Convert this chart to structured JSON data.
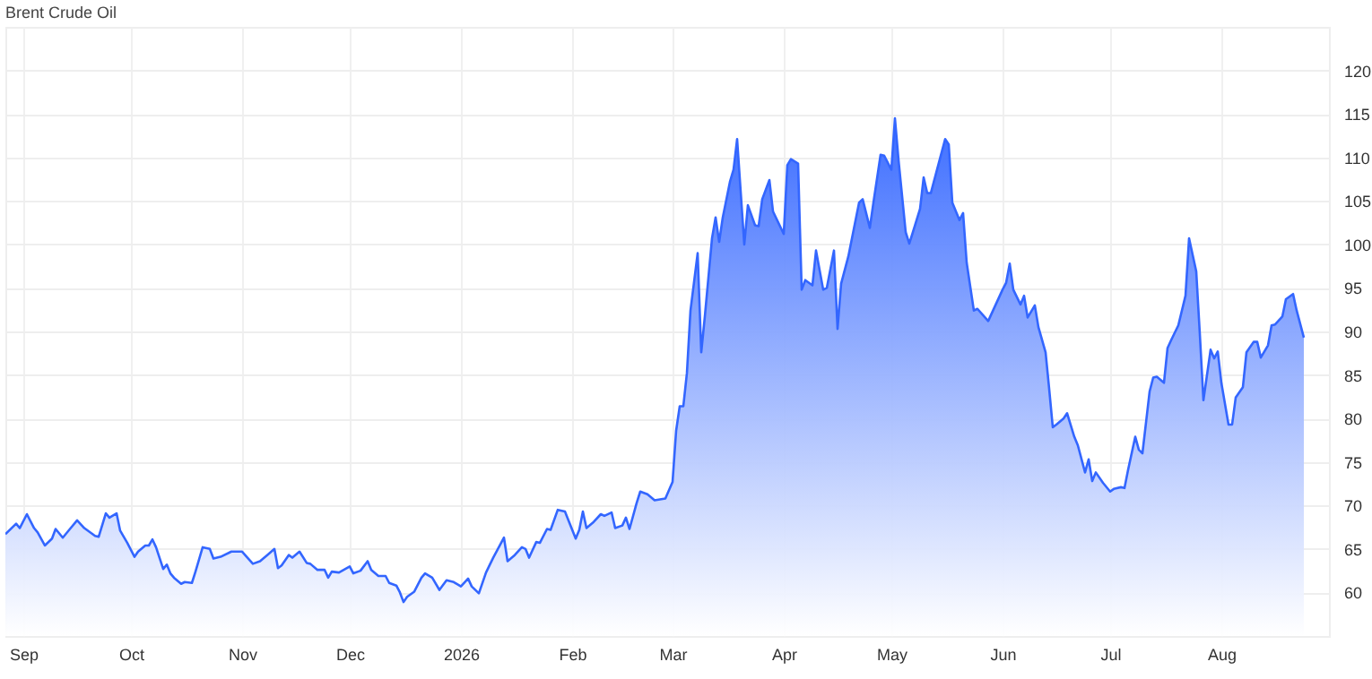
{
  "chart_data": {
    "type": "area",
    "title": "Brent Crude Oil",
    "x": [
      "2025-08-27",
      "2025-08-30",
      "2025-08-31",
      "2025-09-02",
      "2025-09-04",
      "2025-09-05",
      "2025-09-07",
      "2025-09-09",
      "2025-09-10",
      "2025-09-12",
      "2025-09-14",
      "2025-09-16",
      "2025-09-18",
      "2025-09-21",
      "2025-09-22",
      "2025-09-24",
      "2025-09-25",
      "2025-09-27",
      "2025-09-28",
      "2025-09-30",
      "2025-10-02",
      "2025-10-03",
      "2025-10-05",
      "2025-10-06",
      "2025-10-07",
      "2025-10-08",
      "2025-10-10",
      "2025-10-11",
      "2025-10-12",
      "2025-10-13",
      "2025-10-15",
      "2025-10-16",
      "2025-10-18",
      "2025-10-19",
      "2025-10-21",
      "2025-10-23",
      "2025-10-24",
      "2025-10-26",
      "2025-10-29",
      "2025-11-01",
      "2025-11-04",
      "2025-11-06",
      "2025-11-08",
      "2025-11-10",
      "2025-11-11",
      "2025-11-12",
      "2025-11-14",
      "2025-11-15",
      "2025-11-17",
      "2025-11-19",
      "2025-11-20",
      "2025-11-22",
      "2025-11-24",
      "2025-11-25",
      "2025-11-26",
      "2025-11-28",
      "2025-12-01",
      "2025-12-02",
      "2025-12-04",
      "2025-12-06",
      "2025-12-07",
      "2025-12-09",
      "2025-12-11",
      "2025-12-12",
      "2025-12-14",
      "2025-12-15",
      "2025-12-16",
      "2025-12-17",
      "2025-12-19",
      "2025-12-21",
      "2025-12-22",
      "2025-12-24",
      "2025-12-26",
      "2025-12-28",
      "2025-12-30",
      "2026-01-01",
      "2026-01-03",
      "2026-01-04",
      "2026-01-06",
      "2026-01-08",
      "2026-01-10",
      "2026-01-13",
      "2026-01-14",
      "2026-01-16",
      "2026-01-18",
      "2026-01-19",
      "2026-01-20",
      "2026-01-22",
      "2026-01-23",
      "2026-01-25",
      "2026-01-26",
      "2026-01-28",
      "2026-01-30",
      "2026-02-02",
      "2026-02-03",
      "2026-02-04",
      "2026-02-05",
      "2026-02-07",
      "2026-02-09",
      "2026-02-10",
      "2026-02-12",
      "2026-02-13",
      "2026-02-15",
      "2026-02-16",
      "2026-02-17",
      "2026-02-19",
      "2026-02-20",
      "2026-02-22",
      "2026-02-24",
      "2026-02-27",
      "2026-03-01",
      "2026-03-02",
      "2026-03-03",
      "2026-03-04",
      "2026-03-05",
      "2026-03-06",
      "2026-03-08",
      "2026-03-09",
      "2026-03-10",
      "2026-03-12",
      "2026-03-13",
      "2026-03-14",
      "2026-03-15",
      "2026-03-17",
      "2026-03-18",
      "2026-03-19",
      "2026-03-21",
      "2026-03-22",
      "2026-03-24",
      "2026-03-25",
      "2026-03-26",
      "2026-03-28",
      "2026-03-29",
      "2026-04-01",
      "2026-04-02",
      "2026-04-03",
      "2026-04-05",
      "2026-04-06",
      "2026-04-07",
      "2026-04-09",
      "2026-04-10",
      "2026-04-12",
      "2026-04-13",
      "2026-04-15",
      "2026-04-16",
      "2026-04-17",
      "2026-04-19",
      "2026-04-22",
      "2026-04-23",
      "2026-04-25",
      "2026-04-26",
      "2026-04-28",
      "2026-04-29",
      "2026-05-01",
      "2026-05-02",
      "2026-05-03",
      "2026-05-05",
      "2026-05-06",
      "2026-05-07",
      "2026-05-09",
      "2026-05-10",
      "2026-05-11",
      "2026-05-12",
      "2026-05-14",
      "2026-05-16",
      "2026-05-17",
      "2026-05-18",
      "2026-05-20",
      "2026-05-21",
      "2026-05-22",
      "2026-05-24",
      "2026-05-25",
      "2026-05-28",
      "2026-06-01",
      "2026-06-02",
      "2026-06-03",
      "2026-06-04",
      "2026-06-06",
      "2026-06-07",
      "2026-06-08",
      "2026-06-10",
      "2026-06-11",
      "2026-06-13",
      "2026-06-14",
      "2026-06-15",
      "2026-06-16",
      "2026-06-18",
      "2026-06-19",
      "2026-06-21",
      "2026-06-22",
      "2026-06-24",
      "2026-06-25",
      "2026-06-26",
      "2026-06-27",
      "2026-06-29",
      "2026-07-01",
      "2026-07-02",
      "2026-07-04",
      "2026-07-05",
      "2026-07-06",
      "2026-07-08",
      "2026-07-09",
      "2026-07-10",
      "2026-07-12",
      "2026-07-13",
      "2026-07-14",
      "2026-07-16",
      "2026-07-17",
      "2026-07-18",
      "2026-07-20",
      "2026-07-22",
      "2026-07-23",
      "2026-07-25",
      "2026-07-26",
      "2026-07-27",
      "2026-07-29",
      "2026-07-30",
      "2026-07-31",
      "2026-08-01",
      "2026-08-03",
      "2026-08-04",
      "2026-08-05",
      "2026-08-07",
      "2026-08-08",
      "2026-08-10",
      "2026-08-11",
      "2026-08-12",
      "2026-08-14",
      "2026-08-15",
      "2026-08-16",
      "2026-08-18",
      "2026-08-19",
      "2026-08-21",
      "2026-08-22",
      "2026-08-24"
    ],
    "series": [
      {
        "color": "#3366ff",
        "values": [
          66.7,
          67.9,
          67.4,
          69.0,
          67.4,
          66.9,
          65.4,
          66.2,
          67.3,
          66.3,
          67.3,
          68.3,
          67.4,
          66.5,
          66.4,
          69.1,
          68.6,
          69.1,
          67.1,
          65.7,
          64.1,
          64.7,
          65.4,
          65.4,
          66.1,
          65.2,
          62.7,
          63.2,
          62.2,
          61.7,
          61.0,
          61.2,
          61.1,
          62.4,
          65.2,
          65.0,
          63.9,
          64.1,
          64.7,
          64.7,
          63.3,
          63.6,
          64.3,
          65.0,
          62.8,
          63.1,
          64.3,
          64.0,
          64.7,
          63.4,
          63.3,
          62.6,
          62.6,
          61.7,
          62.4,
          62.3,
          63.0,
          62.2,
          62.5,
          63.6,
          62.6,
          61.9,
          61.9,
          61.1,
          60.8,
          60.0,
          58.9,
          59.5,
          60.1,
          61.7,
          62.2,
          61.7,
          60.3,
          61.4,
          61.2,
          60.7,
          61.6,
          60.7,
          59.9,
          62.3,
          64.0,
          66.3,
          63.6,
          64.3,
          65.2,
          65.0,
          64.0,
          65.8,
          65.7,
          67.3,
          67.2,
          69.5,
          69.3,
          66.2,
          67.2,
          69.3,
          67.4,
          68.1,
          69.0,
          68.8,
          69.2,
          67.4,
          67.7,
          68.6,
          67.3,
          70.3,
          71.6,
          71.3,
          70.6,
          70.8,
          72.7,
          78.6,
          81.4,
          81.4,
          85.2,
          92.4,
          99.0,
          87.6,
          91.7,
          100.7,
          103.1,
          100.3,
          103.1,
          107.2,
          108.6,
          112.1,
          100.0,
          104.5,
          102.2,
          102.1,
          105.2,
          107.4,
          103.8,
          101.2,
          109.1,
          109.8,
          109.3,
          94.8,
          95.9,
          95.3,
          99.3,
          94.8,
          95.0,
          99.3,
          90.3,
          95.5,
          98.6,
          104.8,
          105.2,
          101.9,
          104.8,
          110.3,
          110.2,
          108.6,
          114.5,
          109.7,
          101.4,
          100.1,
          101.4,
          104.1,
          107.7,
          105.9,
          105.9,
          109.0,
          112.1,
          111.5,
          104.8,
          102.8,
          103.6,
          97.9,
          92.4,
          92.6,
          91.2,
          94.8,
          95.6,
          97.8,
          94.8,
          93.1,
          94.1,
          91.6,
          93.0,
          90.5,
          87.6,
          83.4,
          79.0,
          79.3,
          80.0,
          80.6,
          77.9,
          76.9,
          73.8,
          75.3,
          72.8,
          73.8,
          72.6,
          71.6,
          71.9,
          72.1,
          72.0,
          74.1,
          77.9,
          76.4,
          76.0,
          83.1,
          84.7,
          84.8,
          84.1,
          88.1,
          89.0,
          90.7,
          94.1,
          100.7,
          96.9,
          89.7,
          82.1,
          87.9,
          86.9,
          87.7,
          84.1,
          79.3,
          79.3,
          82.4,
          83.6,
          87.6,
          88.8,
          88.8,
          87.0,
          88.4,
          90.7,
          90.8,
          91.7,
          93.7,
          94.3,
          92.4,
          89.3
        ]
      }
    ],
    "xlim": [
      "2025-08-27",
      "2026-08-31"
    ],
    "xticks": [
      {
        "value": "2025-09-01",
        "label": "Sep"
      },
      {
        "value": "2025-10-01",
        "label": "Oct"
      },
      {
        "value": "2025-11-01",
        "label": "Nov"
      },
      {
        "value": "2025-12-01",
        "label": "Dec"
      },
      {
        "value": "2026-01-01",
        "label": "2026"
      },
      {
        "value": "2026-02-01",
        "label": "Feb"
      },
      {
        "value": "2026-03-01",
        "label": "Mar"
      },
      {
        "value": "2026-04-01",
        "label": "Apr"
      },
      {
        "value": "2026-05-01",
        "label": "May"
      },
      {
        "value": "2026-06-01",
        "label": "Jun"
      },
      {
        "value": "2026-07-01",
        "label": "Jul"
      },
      {
        "value": "2026-08-01",
        "label": "Aug"
      }
    ],
    "ylim": [
      55,
      125
    ],
    "yticks": [
      60,
      65,
      70,
      75,
      80,
      85,
      90,
      95,
      100,
      105,
      110,
      115,
      120
    ],
    "grid": true
  }
}
